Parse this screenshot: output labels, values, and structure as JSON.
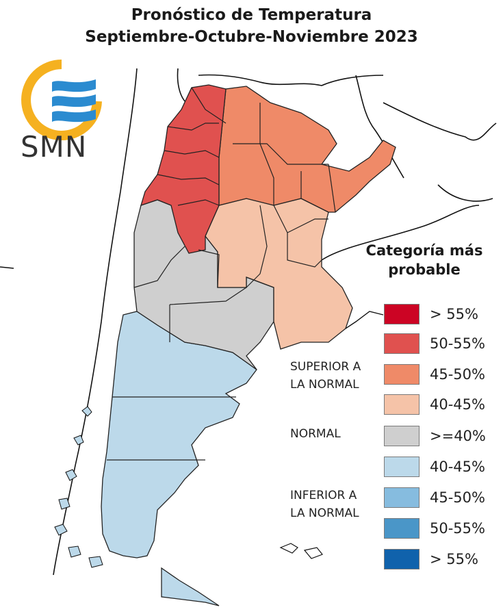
{
  "title": {
    "line1": "Pronóstico de Temperatura",
    "line2": "Septiembre-Octubre-Noviembre 2023"
  },
  "logo": {
    "text": "SMN",
    "colors": {
      "ring": "#F5B120",
      "waves": "#2B8BD0"
    }
  },
  "legend": {
    "title_line1": "Categoría más",
    "title_line2": "probable",
    "groups": {
      "superior_line1": "SUPERIOR A",
      "superior_line2": "LA NORMAL",
      "normal": "NORMAL",
      "inferior_line1": "INFERIOR A",
      "inferior_line2": "LA NORMAL"
    },
    "items": [
      {
        "label": "> 55%",
        "color": "#CC0424"
      },
      {
        "label": "50-55%",
        "color": "#E0514F"
      },
      {
        "label": "45-50%",
        "color": "#EF8A68"
      },
      {
        "label": "40-45%",
        "color": "#F5C3A8"
      },
      {
        "label": ">=40%",
        "color": "#CFCFCF"
      },
      {
        "label": "40-45%",
        "color": "#BCD9EA"
      },
      {
        "label": "45-50%",
        "color": "#86BCDF"
      },
      {
        "label": "50-55%",
        "color": "#4A96C8"
      },
      {
        "label": "> 55%",
        "color": "#1062AC"
      }
    ]
  },
  "map": {
    "region": "Argentina",
    "categories": {
      "northwest": "50-55%",
      "northeast": "45-50%",
      "pampas_central": "40-45%",
      "cuyo_and_la_pampa": ">=40%",
      "patagonia": "40-45%"
    }
  }
}
